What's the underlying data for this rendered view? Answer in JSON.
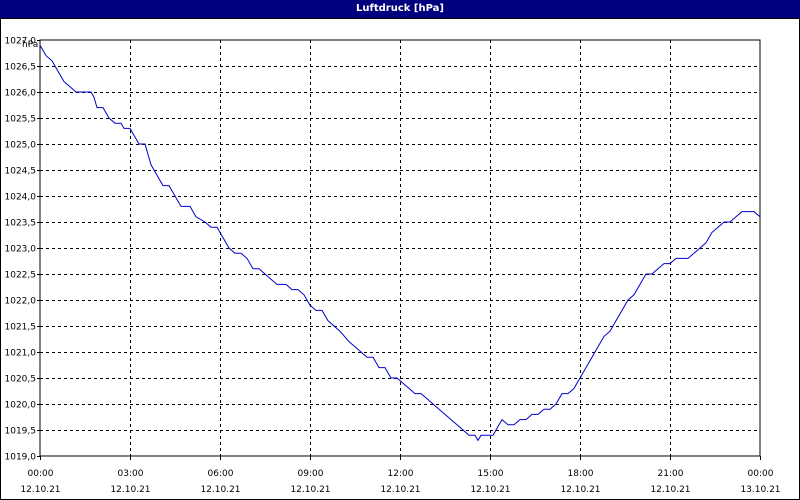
{
  "window": {
    "title": "Luftdruck [hPa]"
  },
  "colors": {
    "titlebar": "#00007f",
    "line": "#0000cc",
    "grid": "#000000"
  },
  "chart_data": {
    "type": "line",
    "title": "Luftdruck [hPa]",
    "ylabel": "hPa",
    "ylim": [
      1019.0,
      1027.0
    ],
    "xlim_hours": [
      0,
      24
    ],
    "grid": true,
    "y_ticks": [
      "1019,0",
      "1019,5",
      "1020,0",
      "1020,5",
      "1021,0",
      "1021,5",
      "1022,0",
      "1022,5",
      "1023,0",
      "1023,5",
      "1024,0",
      "1024,5",
      "1025,0",
      "1025,5",
      "1026,0",
      "1026,5",
      "1027,0"
    ],
    "x_ticks": [
      {
        "time": "00:00",
        "date": "12.10.21"
      },
      {
        "time": "03:00",
        "date": "12.10.21"
      },
      {
        "time": "06:00",
        "date": "12.10.21"
      },
      {
        "time": "09:00",
        "date": "12.10.21"
      },
      {
        "time": "12:00",
        "date": "12.10.21"
      },
      {
        "time": "15:00",
        "date": "12.10.21"
      },
      {
        "time": "18:00",
        "date": "12.10.21"
      },
      {
        "time": "21:00",
        "date": "12.10.21"
      },
      {
        "time": "00:00",
        "date": "13.10.21"
      }
    ],
    "series": [
      {
        "name": "",
        "points": [
          [
            0.0,
            1026.9
          ],
          [
            0.2,
            1026.7
          ],
          [
            0.4,
            1026.6
          ],
          [
            0.6,
            1026.4
          ],
          [
            0.8,
            1026.2
          ],
          [
            1.0,
            1026.1
          ],
          [
            1.2,
            1026.0
          ],
          [
            1.5,
            1026.0
          ],
          [
            1.7,
            1026.0
          ],
          [
            1.8,
            1025.9
          ],
          [
            1.9,
            1025.7
          ],
          [
            2.1,
            1025.7
          ],
          [
            2.3,
            1025.5
          ],
          [
            2.5,
            1025.4
          ],
          [
            2.7,
            1025.4
          ],
          [
            2.8,
            1025.3
          ],
          [
            3.0,
            1025.3
          ],
          [
            3.1,
            1025.2
          ],
          [
            3.2,
            1025.1
          ],
          [
            3.3,
            1025.0
          ],
          [
            3.5,
            1025.0
          ],
          [
            3.6,
            1024.8
          ],
          [
            3.7,
            1024.6
          ],
          [
            3.9,
            1024.4
          ],
          [
            4.1,
            1024.2
          ],
          [
            4.3,
            1024.2
          ],
          [
            4.5,
            1024.0
          ],
          [
            4.7,
            1023.8
          ],
          [
            5.0,
            1023.8
          ],
          [
            5.2,
            1023.6
          ],
          [
            5.5,
            1023.5
          ],
          [
            5.7,
            1023.4
          ],
          [
            5.9,
            1023.4
          ],
          [
            6.1,
            1023.2
          ],
          [
            6.3,
            1023.0
          ],
          [
            6.5,
            1022.9
          ],
          [
            6.7,
            1022.9
          ],
          [
            6.9,
            1022.8
          ],
          [
            7.1,
            1022.6
          ],
          [
            7.3,
            1022.6
          ],
          [
            7.5,
            1022.5
          ],
          [
            7.7,
            1022.4
          ],
          [
            7.9,
            1022.3
          ],
          [
            8.2,
            1022.3
          ],
          [
            8.4,
            1022.2
          ],
          [
            8.6,
            1022.2
          ],
          [
            8.8,
            1022.1
          ],
          [
            9.0,
            1021.9
          ],
          [
            9.2,
            1021.8
          ],
          [
            9.4,
            1021.8
          ],
          [
            9.6,
            1021.6
          ],
          [
            9.8,
            1021.5
          ],
          [
            10.0,
            1021.4
          ],
          [
            10.3,
            1021.2
          ],
          [
            10.5,
            1021.1
          ],
          [
            10.7,
            1021.0
          ],
          [
            10.9,
            1020.9
          ],
          [
            11.1,
            1020.9
          ],
          [
            11.3,
            1020.7
          ],
          [
            11.5,
            1020.7
          ],
          [
            11.7,
            1020.5
          ],
          [
            11.9,
            1020.5
          ],
          [
            12.1,
            1020.4
          ],
          [
            12.3,
            1020.3
          ],
          [
            12.5,
            1020.2
          ],
          [
            12.7,
            1020.2
          ],
          [
            12.9,
            1020.1
          ],
          [
            13.1,
            1020.0
          ],
          [
            13.3,
            1019.9
          ],
          [
            13.5,
            1019.8
          ],
          [
            13.7,
            1019.7
          ],
          [
            13.9,
            1019.6
          ],
          [
            14.1,
            1019.5
          ],
          [
            14.3,
            1019.4
          ],
          [
            14.5,
            1019.4
          ],
          [
            14.6,
            1019.3
          ],
          [
            14.7,
            1019.4
          ],
          [
            14.9,
            1019.4
          ],
          [
            15.1,
            1019.4
          ],
          [
            15.2,
            1019.5
          ],
          [
            15.4,
            1019.7
          ],
          [
            15.6,
            1019.6
          ],
          [
            15.8,
            1019.6
          ],
          [
            16.0,
            1019.7
          ],
          [
            16.2,
            1019.7
          ],
          [
            16.4,
            1019.8
          ],
          [
            16.6,
            1019.8
          ],
          [
            16.8,
            1019.9
          ],
          [
            17.0,
            1019.9
          ],
          [
            17.2,
            1020.0
          ],
          [
            17.4,
            1020.2
          ],
          [
            17.6,
            1020.2
          ],
          [
            17.8,
            1020.3
          ],
          [
            18.0,
            1020.5
          ],
          [
            18.2,
            1020.7
          ],
          [
            18.4,
            1020.9
          ],
          [
            18.6,
            1021.1
          ],
          [
            18.8,
            1021.3
          ],
          [
            19.0,
            1021.4
          ],
          [
            19.2,
            1021.6
          ],
          [
            19.4,
            1021.8
          ],
          [
            19.6,
            1022.0
          ],
          [
            19.8,
            1022.1
          ],
          [
            20.0,
            1022.3
          ],
          [
            20.2,
            1022.5
          ],
          [
            20.4,
            1022.5
          ],
          [
            20.6,
            1022.6
          ],
          [
            20.8,
            1022.7
          ],
          [
            21.0,
            1022.7
          ],
          [
            21.2,
            1022.8
          ],
          [
            21.4,
            1022.8
          ],
          [
            21.6,
            1022.8
          ],
          [
            21.8,
            1022.9
          ],
          [
            22.0,
            1023.0
          ],
          [
            22.2,
            1023.1
          ],
          [
            22.4,
            1023.3
          ],
          [
            22.6,
            1023.4
          ],
          [
            22.8,
            1023.5
          ],
          [
            23.0,
            1023.5
          ],
          [
            23.2,
            1023.6
          ],
          [
            23.4,
            1023.7
          ],
          [
            23.6,
            1023.7
          ],
          [
            23.8,
            1023.7
          ],
          [
            24.0,
            1023.6
          ]
        ]
      }
    ]
  }
}
